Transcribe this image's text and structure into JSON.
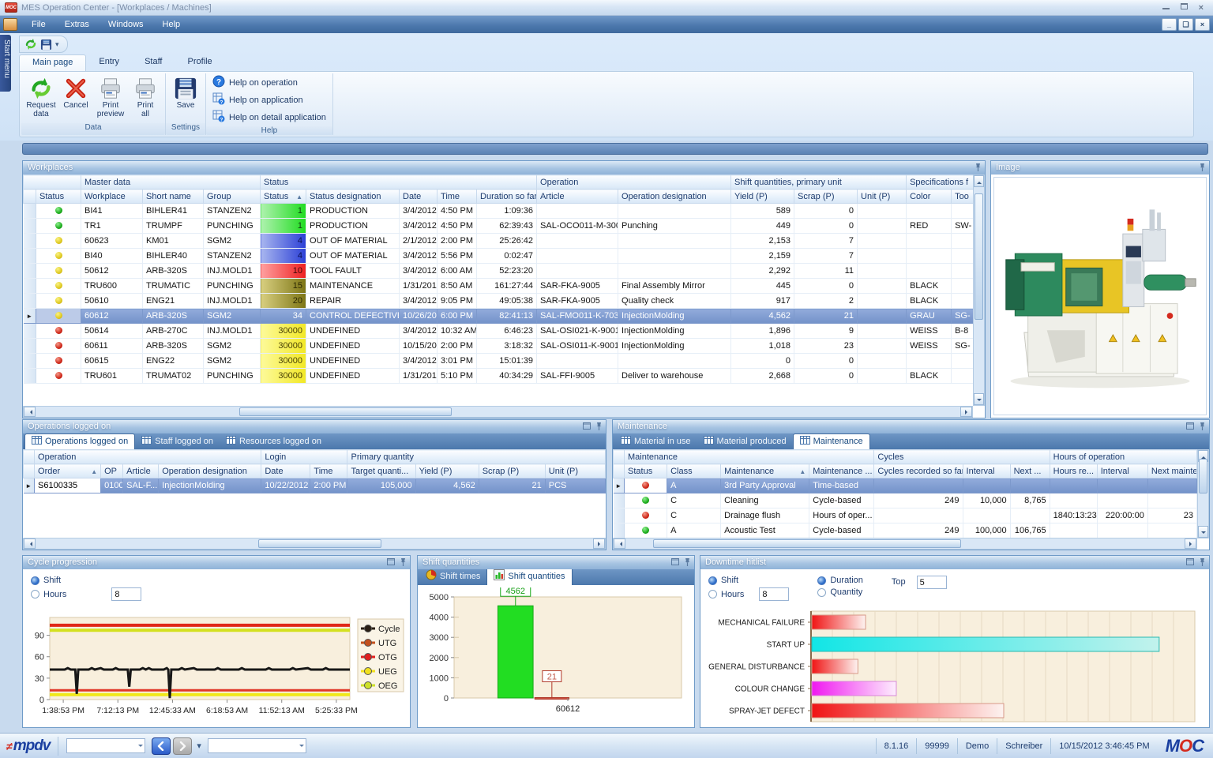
{
  "window": {
    "title": "MES Operation Center - [Workplaces / Machines]",
    "menu": [
      "File",
      "Extras",
      "Windows",
      "Help"
    ],
    "start_menu": "Start menu"
  },
  "ribbon": {
    "tabs": [
      "Main page",
      "Entry",
      "Staff",
      "Profile"
    ],
    "active_tab": "Main page",
    "groups": [
      {
        "label": "Data",
        "buttons": [
          {
            "label": "Request data",
            "icon": "refresh"
          },
          {
            "label": "Cancel",
            "icon": "cancel"
          },
          {
            "label": "Print preview",
            "icon": "print"
          },
          {
            "label": "Print all",
            "icon": "print"
          }
        ]
      },
      {
        "label": "Settings",
        "buttons": [
          {
            "label": "Save",
            "icon": "save"
          }
        ]
      },
      {
        "label": "Help",
        "buttons": [
          {
            "label": "Help on operation",
            "icon": "helpcircle"
          },
          {
            "label": "Help on application",
            "icon": "helpgrid"
          },
          {
            "label": "Help on detail application",
            "icon": "helpgrid"
          }
        ]
      }
    ]
  },
  "workplaces": {
    "title": "Workplaces",
    "group_headers": [
      "",
      "Master data",
      "Status",
      "Operation",
      "Shift quantities, primary unit",
      "Specifications f"
    ],
    "columns": [
      "Status",
      "Workplace",
      "Short name",
      "Group",
      "Status",
      "Status designation",
      "Date",
      "Time",
      "Duration so far",
      "Article",
      "Operation designation",
      "Yield (P)",
      "Scrap (P)",
      "Unit (P)",
      "Color",
      "Too"
    ],
    "rows": [
      {
        "led": "green",
        "workplace": "BI41",
        "short_name": "BIHLER41",
        "group": "STANZEN2",
        "status": "1",
        "status_class": "green",
        "designation": "PRODUCTION",
        "date": "3/4/2012",
        "time": "4:50 PM",
        "duration": "1:09:36",
        "article": "",
        "operation": "",
        "yield": "589",
        "scrap": "0",
        "unit": "",
        "color": "",
        "tool": "",
        "selected": false
      },
      {
        "led": "green",
        "workplace": "TR1",
        "short_name": "TRUMPF",
        "group": "PUNCHING",
        "status": "1",
        "status_class": "green",
        "designation": "PRODUCTION",
        "date": "3/4/2012",
        "time": "4:50 PM",
        "duration": "62:39:43",
        "article": "SAL-OCO011-M-3000",
        "operation": "Punching",
        "yield": "449",
        "scrap": "0",
        "unit": "",
        "color": "RED",
        "tool": "SW-",
        "selected": false
      },
      {
        "led": "yellow",
        "workplace": "60623",
        "short_name": "KM01",
        "group": "SGM2",
        "status": "4",
        "status_class": "blue",
        "designation": "OUT OF MATERIAL",
        "date": "2/1/2012",
        "time": "2:00 PM",
        "duration": "25:26:42",
        "article": "",
        "operation": "",
        "yield": "2,153",
        "scrap": "7",
        "unit": "",
        "color": "",
        "tool": "",
        "selected": false
      },
      {
        "led": "yellow",
        "workplace": "BI40",
        "short_name": "BIHLER40",
        "group": "STANZEN2",
        "status": "4",
        "status_class": "blue",
        "designation": "OUT OF MATERIAL",
        "date": "3/4/2012",
        "time": "5:56 PM",
        "duration": "0:02:47",
        "article": "",
        "operation": "",
        "yield": "2,159",
        "scrap": "7",
        "unit": "",
        "color": "",
        "tool": "",
        "selected": false
      },
      {
        "led": "yellow",
        "workplace": "50612",
        "short_name": "ARB-320S",
        "group": "INJ.MOLD1",
        "status": "10",
        "status_class": "red",
        "designation": "TOOL FAULT",
        "date": "3/4/2012",
        "time": "6:00 AM",
        "duration": "52:23:20",
        "article": "",
        "operation": "",
        "yield": "2,292",
        "scrap": "11",
        "unit": "",
        "color": "",
        "tool": "",
        "selected": false
      },
      {
        "led": "yellow",
        "workplace": "TRU600",
        "short_name": "TRUMATIC",
        "group": "PUNCHING",
        "status": "15",
        "status_class": "olive",
        "designation": "MAINTENANCE",
        "date": "1/31/2012",
        "time": "8:50 AM",
        "duration": "161:27:44",
        "article": "SAR-FKA-9005",
        "operation": "Final Assembly Mirror",
        "yield": "445",
        "scrap": "0",
        "unit": "",
        "color": "BLACK",
        "tool": "",
        "selected": false
      },
      {
        "led": "yellow",
        "workplace": "50610",
        "short_name": "ENG21",
        "group": "INJ.MOLD1",
        "status": "20",
        "status_class": "olive",
        "designation": "REPAIR",
        "date": "3/4/2012",
        "time": "9:05 PM",
        "duration": "49:05:38",
        "article": "SAR-FKA-9005",
        "operation": "Quality check",
        "yield": "917",
        "scrap": "2",
        "unit": "",
        "color": "BLACK",
        "tool": "",
        "selected": false
      },
      {
        "led": "yellow",
        "workplace": "60612",
        "short_name": "ARB-320S",
        "group": "SGM2",
        "status": "34",
        "status_class": "darkred",
        "designation": "CONTROL DEFECTIVE",
        "date": "10/26/2012",
        "time": "6:00 PM",
        "duration": "82:41:13",
        "article": "SAL-FMO011-K-7036",
        "operation": "InjectionMolding",
        "yield": "4,562",
        "scrap": "21",
        "unit": "",
        "color": "GRAU",
        "tool": "SG-",
        "selected": true
      },
      {
        "led": "red",
        "workplace": "50614",
        "short_name": "ARB-270C",
        "group": "INJ.MOLD1",
        "status": "30000",
        "status_class": "yellow",
        "designation": "UNDEFINED",
        "date": "3/4/2012",
        "time": "10:32 AM",
        "duration": "6:46:23",
        "article": "SAL-OSI021-K-9001",
        "operation": "InjectionMolding",
        "yield": "1,896",
        "scrap": "9",
        "unit": "",
        "color": "WEISS",
        "tool": "B-8",
        "selected": false
      },
      {
        "led": "red",
        "workplace": "60611",
        "short_name": "ARB-320S",
        "group": "SGM2",
        "status": "30000",
        "status_class": "yellow",
        "designation": "UNDEFINED",
        "date": "10/15/2012",
        "time": "2:00 PM",
        "duration": "3:18:32",
        "article": "SAL-OSI011-K-9001",
        "operation": "InjectionMolding",
        "yield": "1,018",
        "scrap": "23",
        "unit": "",
        "color": "WEISS",
        "tool": "SG-",
        "selected": false
      },
      {
        "led": "red",
        "workplace": "60615",
        "short_name": "ENG22",
        "group": "SGM2",
        "status": "30000",
        "status_class": "yellow",
        "designation": "UNDEFINED",
        "date": "3/4/2012",
        "time": "3:01 PM",
        "duration": "15:01:39",
        "article": "",
        "operation": "",
        "yield": "0",
        "scrap": "0",
        "unit": "",
        "color": "",
        "tool": "",
        "selected": false
      },
      {
        "led": "red",
        "workplace": "TRU601",
        "short_name": "TRUMAT02",
        "group": "PUNCHING",
        "status": "30000",
        "status_class": "yellow",
        "designation": "UNDEFINED",
        "date": "1/31/2012",
        "time": "5:10 PM",
        "duration": "40:34:29",
        "article": "SAL-FFI-9005",
        "operation": "Deliver to warehouse",
        "yield": "2,668",
        "scrap": "0",
        "unit": "",
        "color": "BLACK",
        "tool": "",
        "selected": false
      }
    ]
  },
  "image_panel": {
    "title": "Image"
  },
  "operations": {
    "title": "Operations logged on",
    "tabs": [
      "Operations logged on",
      "Staff logged on",
      "Resources logged on"
    ],
    "active_tab": "Operations logged on",
    "group_headers": [
      "Operation",
      "Login",
      "Primary quantity"
    ],
    "columns": [
      "Order",
      "OP",
      "Article",
      "Operation designation",
      "Date",
      "Time",
      "Target quanti...",
      "Yield (P)",
      "Scrap (P)",
      "Unit (P)"
    ],
    "rows": [
      {
        "order": "S6100335",
        "op": "0100",
        "article": "SAL-F...",
        "designation": "InjectionMolding",
        "date": "10/22/2012",
        "time": "2:00 PM",
        "target": "105,000",
        "yield": "4,562",
        "scrap": "21",
        "unit": "PCS",
        "selected": true
      }
    ]
  },
  "maintenance": {
    "title": "Maintenance",
    "tabs": [
      "Material in use",
      "Material produced",
      "Maintenance"
    ],
    "active_tab": "Maintenance",
    "group_headers": [
      "Maintenance",
      "Cycles",
      "Hours of operation"
    ],
    "columns": [
      "Status",
      "Class",
      "Maintenance",
      "Maintenance ...",
      "Cycles recorded so far",
      "Interval",
      "Next ...",
      "Hours re...",
      "Interval",
      "Next maintenan"
    ],
    "rows": [
      {
        "led": "red",
        "class": "A",
        "maintenance": "3rd Party Approval",
        "type": "Time-based",
        "cycles": "",
        "interval": "",
        "next": "",
        "hours": "",
        "hinterval": "",
        "nextm": "",
        "selected": true
      },
      {
        "led": "green",
        "class": "C",
        "maintenance": "Cleaning",
        "type": "Cycle-based",
        "cycles": "249",
        "interval": "10,000",
        "next": "8,765",
        "hours": "",
        "hinterval": "",
        "nextm": "",
        "selected": false
      },
      {
        "led": "red",
        "class": "C",
        "maintenance": "Drainage flush",
        "type": "Hours of oper...",
        "cycles": "",
        "interval": "",
        "next": "",
        "hours": "1840:13:23",
        "hinterval": "220:00:00",
        "nextm": "23",
        "selected": false
      },
      {
        "led": "green",
        "class": "A",
        "maintenance": "Acoustic Test",
        "type": "Cycle-based",
        "cycles": "249",
        "interval": "100,000",
        "next": "106,765",
        "hours": "",
        "hinterval": "",
        "nextm": "",
        "selected": false,
        "partial": true
      }
    ]
  },
  "cycle_panel": {
    "title": "Cycle progression",
    "radio_shift": "Shift",
    "radio_hours": "Hours",
    "hours_value": "8"
  },
  "shift_panel": {
    "title": "Shift quantities",
    "tabs": [
      "Shift times",
      "Shift quantities"
    ],
    "active_tab": "Shift quantities"
  },
  "downtime_panel": {
    "title": "Downtime hitlist",
    "radio_shift": "Shift",
    "radio_hours": "Hours",
    "hours_value": "8",
    "radio_duration": "Duration",
    "radio_quantity": "Quantity",
    "top_label": "Top",
    "top_value": "5"
  },
  "chart_data": [
    {
      "id": "cycle",
      "type": "line",
      "title": "Cycle progression",
      "ylim": [
        0,
        115
      ],
      "yticks": [
        0,
        30,
        60,
        90
      ],
      "xticklabels": [
        "1:38:53 PM",
        "7:12:13 PM",
        "12:45:33 AM",
        "6:18:53 AM",
        "11:52:13 AM",
        "5:25:33 PM"
      ],
      "legend": [
        "Cycle",
        "UTG",
        "OTG",
        "UEG",
        "OEG"
      ],
      "legend_colors": [
        "#2a1f14",
        "#c2501e",
        "#e02020",
        "#f0e020",
        "#cde02a"
      ],
      "series": [
        {
          "name": "OTG",
          "color": "#e02818",
          "width": 4,
          "points": [
            [
              0,
              104
            ],
            [
              1,
              104
            ]
          ]
        },
        {
          "name": "OEG",
          "color": "#d4e020",
          "width": 4,
          "points": [
            [
              0,
              97
            ],
            [
              1,
              97
            ]
          ]
        },
        {
          "name": "UTG",
          "color": "#e03828",
          "width": 3,
          "points": [
            [
              0,
              13
            ],
            [
              1,
              13
            ]
          ]
        },
        {
          "name": "UEG",
          "color": "#f0e818",
          "width": 4,
          "points": [
            [
              0,
              7
            ],
            [
              1,
              7
            ]
          ]
        },
        {
          "name": "Cycle",
          "color": "#181818",
          "width": 3,
          "points": [
            [
              0,
              42
            ],
            [
              0.05,
              42
            ],
            [
              0.06,
              44
            ],
            [
              0.07,
              42
            ],
            [
              0.085,
              42
            ],
            [
              0.09,
              8
            ],
            [
              0.095,
              42
            ],
            [
              0.13,
              42
            ],
            [
              0.14,
              44
            ],
            [
              0.15,
              42
            ],
            [
              0.17,
              44
            ],
            [
              0.18,
              42
            ],
            [
              0.21,
              42
            ],
            [
              0.22,
              44
            ],
            [
              0.23,
              42
            ],
            [
              0.26,
              42
            ],
            [
              0.265,
              18
            ],
            [
              0.27,
              42
            ],
            [
              0.3,
              42
            ],
            [
              0.31,
              44
            ],
            [
              0.32,
              42
            ],
            [
              0.33,
              44
            ],
            [
              0.34,
              42
            ],
            [
              0.38,
              42
            ],
            [
              0.39,
              44
            ],
            [
              0.395,
              42
            ],
            [
              0.4,
              2
            ],
            [
              0.405,
              42
            ],
            [
              0.43,
              42
            ],
            [
              0.44,
              44
            ],
            [
              0.45,
              42
            ],
            [
              0.48,
              44
            ],
            [
              0.49,
              42
            ],
            [
              0.55,
              42
            ],
            [
              0.56,
              44
            ],
            [
              0.57,
              42
            ],
            [
              0.63,
              42
            ],
            [
              0.64,
              44
            ],
            [
              0.65,
              42
            ],
            [
              0.72,
              42
            ],
            [
              0.73,
              44
            ],
            [
              0.74,
              42
            ],
            [
              0.8,
              42
            ],
            [
              0.81,
              44
            ],
            [
              0.82,
              42
            ],
            [
              0.86,
              44
            ],
            [
              0.87,
              42
            ],
            [
              0.91,
              42
            ],
            [
              0.92,
              44
            ],
            [
              0.93,
              42
            ],
            [
              1,
              42
            ]
          ]
        }
      ]
    },
    {
      "id": "shift",
      "type": "bar",
      "title": "Shift quantities",
      "ylim": [
        0,
        5000
      ],
      "yticks": [
        0,
        1000,
        2000,
        3000,
        4000,
        5000
      ],
      "category": "60612",
      "bars": [
        {
          "name": "Yield",
          "value": 4562,
          "label": "4562",
          "color": "#22dd22",
          "border": "#18a818",
          "labelcolor": "#18a018",
          "center": 0.27,
          "width": 0.155
        },
        {
          "name": "Scrap",
          "value": 21,
          "label": "21",
          "color": "#cc5040",
          "border": "#b03828",
          "labelcolor": "#c05848",
          "center": 0.43,
          "width": 0.15
        }
      ]
    },
    {
      "id": "downtime",
      "type": "hbar",
      "title": "Downtime hitlist",
      "categories": [
        "MECHANICAL FAILURE",
        "START UP",
        "GENERAL DISTURBANCE",
        "COLOUR CHANGE",
        "SPRAY-JET DEFECT"
      ],
      "values_pct": [
        14,
        90.5,
        12,
        22,
        50
      ],
      "bar_styles": [
        "red",
        "cyan",
        "red",
        "magenta",
        "red"
      ]
    }
  ],
  "statusbar": {
    "version": "8.1.16",
    "terminal": "99999",
    "mode": "Demo",
    "user": "Schreiber",
    "datetime": "10/15/2012 3:46:45 PM"
  }
}
